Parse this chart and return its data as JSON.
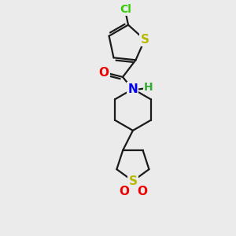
{
  "background_color": "#ebebeb",
  "bond_color": "#1a1a1a",
  "bond_width": 1.6,
  "atom_colors": {
    "Cl": "#33cc00",
    "S": "#b8b800",
    "N": "#0000ee",
    "O": "#ee0000",
    "H": "#33aa33"
  },
  "font_size": 11
}
